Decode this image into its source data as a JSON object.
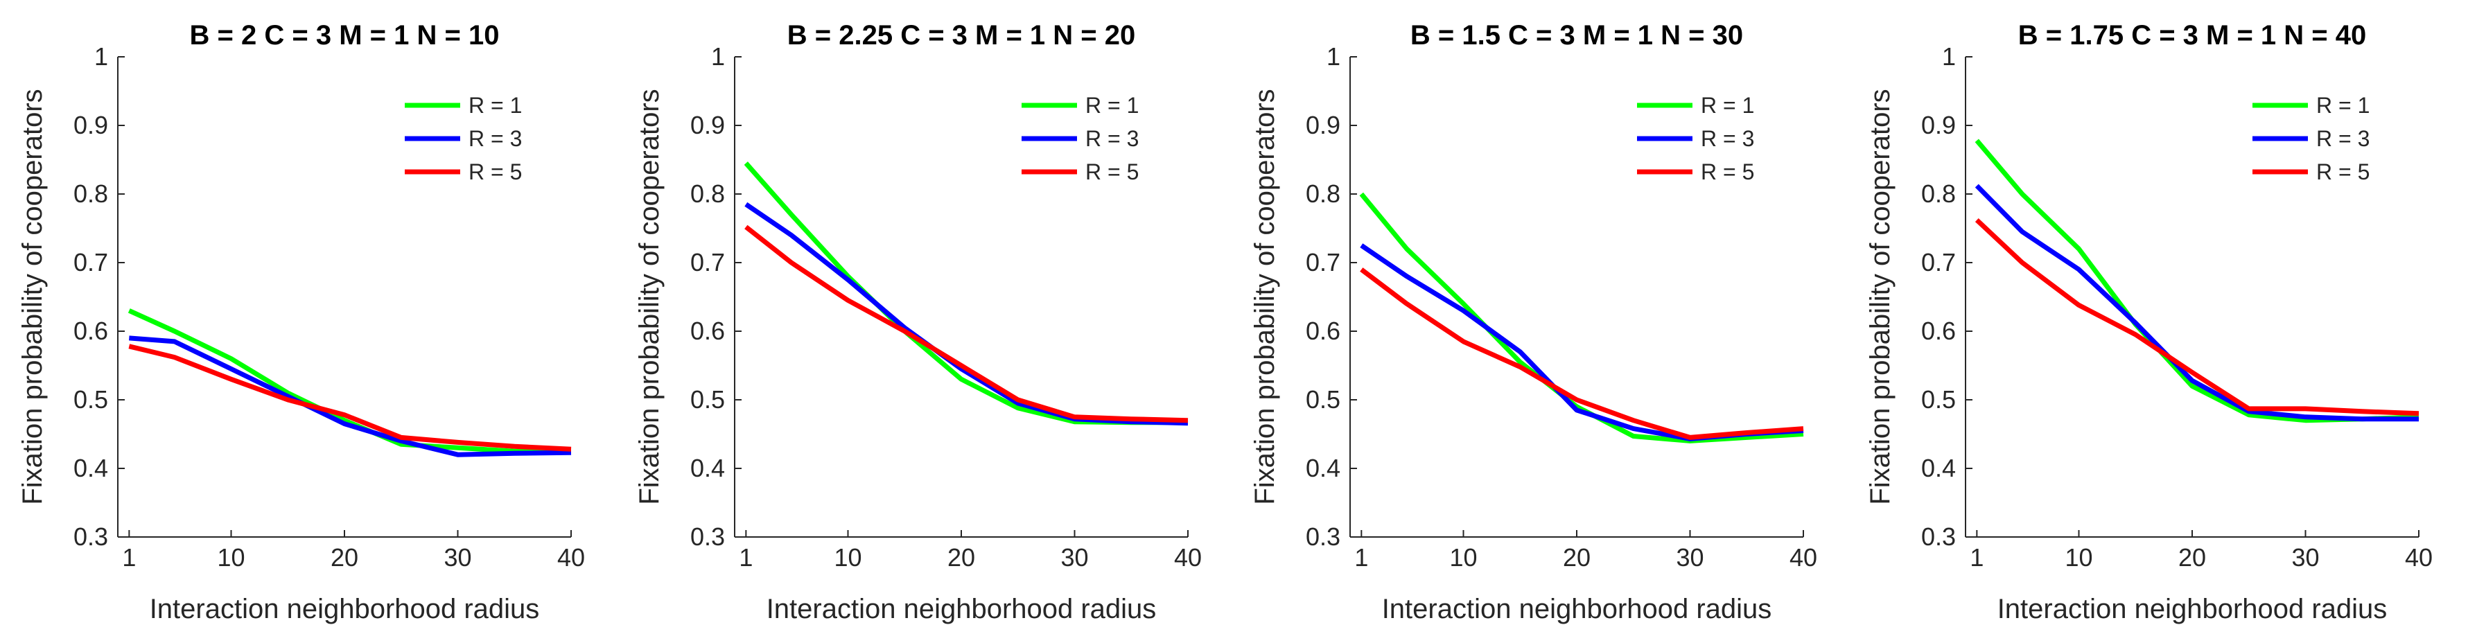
{
  "chart_data": [
    {
      "type": "line",
      "title": "B = 2   C = 3   M = 1   N = 10",
      "xlabel": "Interaction neighborhood radius",
      "ylabel": "Fixation probability of cooperators",
      "xlim": [
        0,
        40
      ],
      "ylim": [
        0.3,
        1
      ],
      "xticks": [
        "1",
        "10",
        "20",
        "30",
        "40"
      ],
      "yticks": [
        "0.3",
        "0.4",
        "0.5",
        "0.6",
        "0.7",
        "0.8",
        "0.9",
        "1"
      ],
      "x": [
        1,
        5,
        10,
        15,
        20,
        25,
        30,
        35,
        40
      ],
      "series": [
        {
          "name": "R = 1",
          "color": "#00ff00",
          "values": [
            0.63,
            0.6,
            0.56,
            0.51,
            0.47,
            0.435,
            0.43,
            0.425,
            0.425
          ]
        },
        {
          "name": "R = 3",
          "color": "#0000ff",
          "values": [
            0.59,
            0.585,
            0.545,
            0.505,
            0.465,
            0.44,
            0.42,
            0.422,
            0.423
          ]
        },
        {
          "name": "R = 5",
          "color": "#ff0000",
          "values": [
            0.578,
            0.562,
            0.53,
            0.5,
            0.478,
            0.445,
            0.438,
            0.432,
            0.428
          ]
        }
      ],
      "legend": "top-right"
    },
    {
      "type": "line",
      "title": "B = 2.25   C = 3   M = 1   N = 20",
      "xlabel": "Interaction neighborhood radius",
      "ylabel": "Fixation probability of cooperators",
      "xlim": [
        0,
        40
      ],
      "ylim": [
        0.3,
        1
      ],
      "xticks": [
        "1",
        "10",
        "20",
        "30",
        "40"
      ],
      "yticks": [
        "0.3",
        "0.4",
        "0.5",
        "0.6",
        "0.7",
        "0.8",
        "0.9",
        "1"
      ],
      "x": [
        1,
        5,
        10,
        15,
        20,
        25,
        30,
        35,
        40
      ],
      "series": [
        {
          "name": "R = 1",
          "color": "#00ff00",
          "values": [
            0.845,
            0.77,
            0.68,
            0.6,
            0.53,
            0.488,
            0.468,
            0.467,
            0.467
          ]
        },
        {
          "name": "R = 3",
          "color": "#0000ff",
          "values": [
            0.785,
            0.74,
            0.675,
            0.605,
            0.545,
            0.495,
            0.472,
            0.468,
            0.466
          ]
        },
        {
          "name": "R = 5",
          "color": "#ff0000",
          "values": [
            0.752,
            0.7,
            0.645,
            0.6,
            0.55,
            0.5,
            0.475,
            0.472,
            0.47
          ]
        }
      ],
      "legend": "top-right"
    },
    {
      "type": "line",
      "title": "B = 1.5   C = 3   M = 1   N = 30",
      "xlabel": "Interaction neighborhood radius",
      "ylabel": "Fixation probability of cooperators",
      "xlim": [
        0,
        40
      ],
      "ylim": [
        0.3,
        1
      ],
      "xticks": [
        "1",
        "10",
        "20",
        "30",
        "40"
      ],
      "yticks": [
        "0.3",
        "0.4",
        "0.5",
        "0.6",
        "0.7",
        "0.8",
        "0.9",
        "1"
      ],
      "x": [
        1,
        5,
        10,
        15,
        20,
        25,
        30,
        35,
        40
      ],
      "series": [
        {
          "name": "R = 1",
          "color": "#00ff00",
          "values": [
            0.8,
            0.72,
            0.64,
            0.555,
            0.49,
            0.447,
            0.44,
            0.445,
            0.45
          ]
        },
        {
          "name": "R = 3",
          "color": "#0000ff",
          "values": [
            0.725,
            0.68,
            0.63,
            0.57,
            0.485,
            0.458,
            0.443,
            0.45,
            0.455
          ]
        },
        {
          "name": "R = 5",
          "color": "#ff0000",
          "values": [
            0.69,
            0.64,
            0.585,
            0.548,
            0.5,
            0.47,
            0.445,
            0.452,
            0.458
          ]
        }
      ],
      "legend": "top-right"
    },
    {
      "type": "line",
      "title": "B = 1.75   C = 3   M = 1   N = 40",
      "xlabel": "Interaction neighborhood radius",
      "ylabel": "Fixation probability of cooperators",
      "xlim": [
        0,
        40
      ],
      "ylim": [
        0.3,
        1
      ],
      "xticks": [
        "1",
        "10",
        "20",
        "30",
        "40"
      ],
      "yticks": [
        "0.3",
        "0.4",
        "0.5",
        "0.6",
        "0.7",
        "0.8",
        "0.9",
        "1"
      ],
      "x": [
        1,
        5,
        10,
        15,
        20,
        25,
        30,
        35,
        40
      ],
      "series": [
        {
          "name": "R = 1",
          "color": "#00ff00",
          "values": [
            0.878,
            0.8,
            0.72,
            0.61,
            0.52,
            0.478,
            0.47,
            0.472,
            0.475
          ]
        },
        {
          "name": "R = 3",
          "color": "#0000ff",
          "values": [
            0.812,
            0.745,
            0.69,
            0.612,
            0.528,
            0.483,
            0.475,
            0.472,
            0.472
          ]
        },
        {
          "name": "R = 5",
          "color": "#ff0000",
          "values": [
            0.762,
            0.7,
            0.638,
            0.595,
            0.54,
            0.487,
            0.487,
            0.483,
            0.48
          ]
        }
      ],
      "legend": "top-right"
    }
  ]
}
